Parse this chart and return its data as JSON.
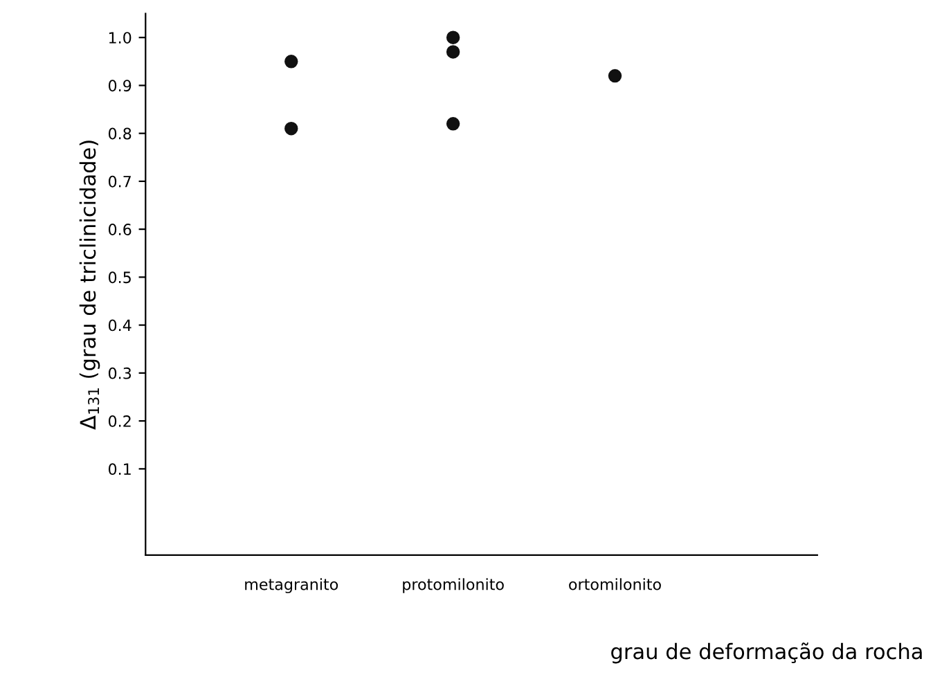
{
  "chart_data": {
    "type": "scatter",
    "xlabel": "grau de deformação da rocha",
    "ylabel": "Δ$_{131}$ (grau de triclinicidade)",
    "categories": [
      "metagranito",
      "protomilonito",
      "ortomilonito"
    ],
    "series": [
      {
        "color": "#111111",
        "x": [
          "metagranito",
          "metagranito",
          "protomilonito",
          "protomilonito",
          "protomilonito",
          "ortomilonito"
        ],
        "values": [
          0.95,
          0.81,
          1.0,
          0.97,
          0.82,
          0.92
        ]
      }
    ],
    "ylim": [
      -0.08,
      1.05
    ],
    "yticks": [
      0.1,
      0.2,
      0.3,
      0.4,
      0.5,
      0.6,
      0.7,
      0.8,
      0.9,
      {
        "value": 1.0,
        "label": "1.0"
      }
    ],
    "marker": "circle",
    "grid": false,
    "legend": false
  }
}
